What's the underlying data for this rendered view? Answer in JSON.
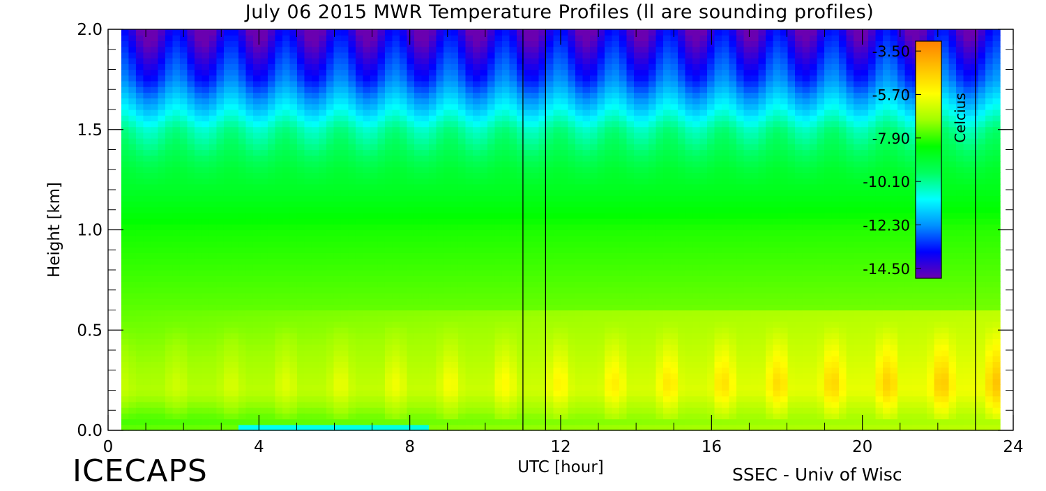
{
  "figure": {
    "title": "July 06 2015 MWR Temperature Profiles (ll are sounding profiles)",
    "brand_left": "ICECAPS",
    "brand_right": "SSEC - Univ of Wisc"
  },
  "chart_data": {
    "type": "heatmap",
    "title": "July 06 2015 MWR Temperature Profiles (ll are sounding profiles)",
    "xlabel": "UTC [hour]",
    "ylabel": "Height [km]",
    "xlim": [
      0,
      24
    ],
    "ylim": [
      0,
      2
    ],
    "x_ticks": [
      0,
      4,
      8,
      12,
      16,
      20,
      24
    ],
    "x_tick_labels": [
      "0",
      "4",
      "8",
      "12",
      "16",
      "20",
      "24"
    ],
    "y_ticks": [
      0.0,
      0.5,
      1.0,
      1.5,
      2.0
    ],
    "y_tick_labels": [
      "0.0",
      "0.5",
      "1.0",
      "1.5",
      "2.0"
    ],
    "data_x_extent": [
      0.35,
      23.65
    ],
    "sounding_times": [
      11.0,
      11.6,
      23.0
    ],
    "colorbar": {
      "label": "Celcius",
      "range": [
        -15.0,
        -3.0
      ],
      "tick_values": [
        -3.5,
        -5.7,
        -7.9,
        -10.1,
        -12.3,
        -14.5
      ],
      "tick_labels": [
        "-3.50",
        "-5.70",
        "-7.90",
        "-10.10",
        "-12.30",
        "-14.50"
      ],
      "colormap": [
        "#6a00b0",
        "#0000ff",
        "#0090ff",
        "#00ffff",
        "#00ff60",
        "#00ff00",
        "#a0ff00",
        "#ffff00",
        "#ffc000",
        "#ff8000"
      ]
    },
    "temperature_profile": {
      "heights": [
        0.0,
        0.05,
        0.2,
        0.5,
        1.0,
        1.3,
        1.5,
        1.75,
        2.0
      ],
      "temps": [
        -7.5,
        -7.8,
        -6.8,
        -7.4,
        -8.2,
        -9.2,
        -10.3,
        -13.0,
        -14.6
      ]
    }
  }
}
